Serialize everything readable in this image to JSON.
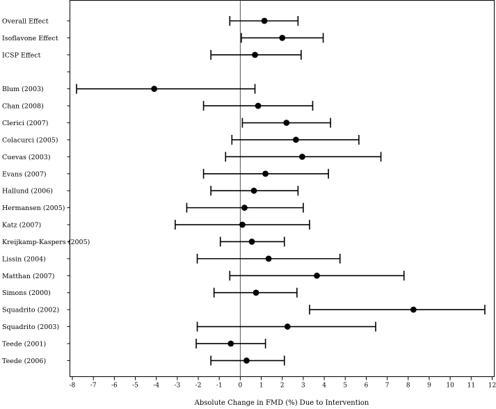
{
  "chart_data": {
    "type": "forest",
    "xlabel": "Absolute Change in FMD (%) Due to Intervention",
    "xlim": [
      -8,
      12
    ],
    "xticks": [
      -8,
      -7,
      -6,
      -5,
      -4,
      -3,
      -2,
      -1,
      0,
      1,
      2,
      3,
      4,
      5,
      6,
      7,
      8,
      9,
      10,
      11,
      12
    ],
    "reference_line": 0,
    "rows": [
      {
        "label": "Overall Effect",
        "estimate": 1.15,
        "lower": -0.5,
        "upper": 2.75
      },
      {
        "label": "Isoflavone Effect",
        "estimate": 2.0,
        "lower": 0.05,
        "upper": 3.95
      },
      {
        "label": "ICSP Effect",
        "estimate": 0.7,
        "lower": -1.4,
        "upper": 2.9
      },
      {
        "label": "",
        "estimate": null,
        "lower": null,
        "upper": null
      },
      {
        "label": "Blum (2003)",
        "estimate": -4.1,
        "lower": -7.8,
        "upper": 0.7
      },
      {
        "label": "Chan (2008)",
        "estimate": 0.85,
        "lower": -1.75,
        "upper": 3.45
      },
      {
        "label": "Clerici (2007)",
        "estimate": 2.2,
        "lower": 0.1,
        "upper": 4.3
      },
      {
        "label": "Colacurci (2005)",
        "estimate": 2.65,
        "lower": -0.4,
        "upper": 5.65
      },
      {
        "label": "Cuevas (2003)",
        "estimate": 2.95,
        "lower": -0.7,
        "upper": 6.7
      },
      {
        "label": "Evans (2007)",
        "estimate": 1.2,
        "lower": -1.75,
        "upper": 4.2
      },
      {
        "label": "Hallund (2006)",
        "estimate": 0.65,
        "lower": -1.4,
        "upper": 2.75
      },
      {
        "label": "Hermansen (2005)",
        "estimate": 0.2,
        "lower": -2.55,
        "upper": 3.0
      },
      {
        "label": "Katz (2007)",
        "estimate": 0.1,
        "lower": -3.1,
        "upper": 3.3
      },
      {
        "label": "Kreijkamp-Kaspers (2005)",
        "estimate": 0.55,
        "lower": -0.95,
        "upper": 2.1
      },
      {
        "label": "Lissin (2004)",
        "estimate": 1.35,
        "lower": -2.05,
        "upper": 4.75
      },
      {
        "label": "Matthan (2007)",
        "estimate": 3.65,
        "lower": -0.5,
        "upper": 7.8
      },
      {
        "label": "Simons (2000)",
        "estimate": 0.75,
        "lower": -1.25,
        "upper": 2.7
      },
      {
        "label": "Squadrito (2002)",
        "estimate": 8.25,
        "lower": 3.3,
        "upper": 11.65
      },
      {
        "label": "Squadrito (2003)",
        "estimate": 2.25,
        "lower": -2.05,
        "upper": 6.45
      },
      {
        "label": "Teede (2001)",
        "estimate": -0.45,
        "lower": -2.1,
        "upper": 1.2
      },
      {
        "label": "Teede (2006)",
        "estimate": 0.3,
        "lower": -1.4,
        "upper": 2.1
      }
    ]
  }
}
